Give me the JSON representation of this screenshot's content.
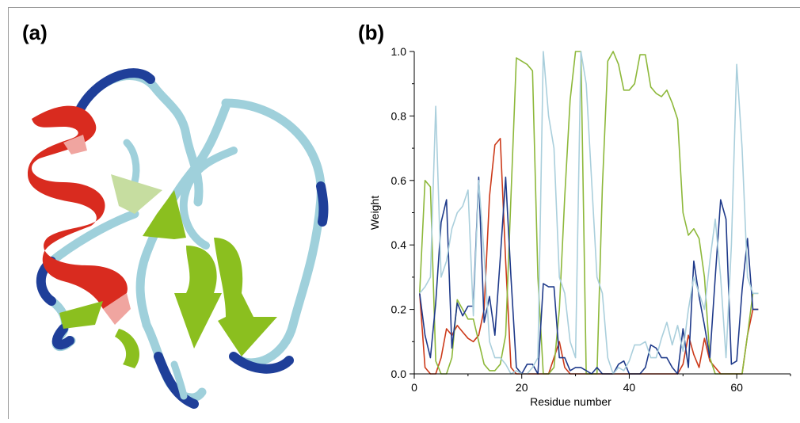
{
  "panels": {
    "a_label": "(a)",
    "b_label": "(b)"
  },
  "colors": {
    "helix": "#d92b1f",
    "strand": "#8bbf1f",
    "coil_light": "#9fd0db",
    "coil_dark": "#1f3f99",
    "series_red": "#cc3a1a",
    "series_green": "#8db83a",
    "series_navy": "#1f3a8a",
    "series_lightblue": "#aacfdc"
  },
  "chart_data": {
    "type": "line",
    "xlabel": "Residue number",
    "ylabel": "Weight",
    "xlim": [
      0,
      70
    ],
    "ylim": [
      0,
      1.0
    ],
    "xticks": [
      "0",
      "20",
      "40",
      "60"
    ],
    "yticks": [
      "0.0",
      "0.2",
      "0.4",
      "0.6",
      "0.8",
      "1.0"
    ],
    "grid": false,
    "legend": "none",
    "series": [
      {
        "color": "#cc3a1a",
        "x": [
          1,
          2,
          3,
          4,
          5,
          6,
          7,
          8,
          9,
          10,
          11,
          12,
          13,
          14,
          15,
          16,
          17,
          18,
          19,
          20,
          21,
          22,
          23,
          24,
          25,
          26,
          27,
          28,
          29,
          30,
          31,
          32,
          33,
          34,
          35,
          36,
          37,
          38,
          39,
          40,
          41,
          42,
          43,
          44,
          45,
          46,
          47,
          48,
          49,
          50,
          51,
          52,
          53,
          54,
          55,
          56,
          57,
          58,
          59,
          60,
          61,
          62,
          63,
          64
        ],
        "values": [
          0.25,
          0.02,
          0.0,
          0.0,
          0.05,
          0.14,
          0.12,
          0.15,
          0.13,
          0.11,
          0.1,
          0.12,
          0.2,
          0.55,
          0.71,
          0.73,
          0.35,
          0.02,
          0.0,
          0.0,
          0.0,
          0.0,
          0.0,
          0.0,
          0.0,
          0.05,
          0.1,
          0.02,
          0.0,
          0.0,
          0.0,
          0.0,
          0.0,
          0.0,
          0.0,
          0.0,
          0.0,
          0.0,
          0.0,
          0.0,
          0.0,
          0.0,
          0.0,
          0.0,
          0.0,
          0.0,
          0.0,
          0.0,
          0.0,
          0.03,
          0.12,
          0.06,
          0.02,
          0.11,
          0.04,
          0.02,
          0.0,
          0.0,
          0.0,
          0.0,
          0.0,
          0.12,
          0.2,
          0.2
        ]
      },
      {
        "color": "#8db83a",
        "x": [
          1,
          2,
          3,
          4,
          5,
          6,
          7,
          8,
          9,
          10,
          11,
          12,
          13,
          14,
          15,
          16,
          17,
          18,
          19,
          20,
          21,
          22,
          23,
          24,
          25,
          26,
          27,
          28,
          29,
          30,
          31,
          32,
          33,
          34,
          35,
          36,
          37,
          38,
          39,
          40,
          41,
          42,
          43,
          44,
          45,
          46,
          47,
          48,
          49,
          50,
          51,
          52,
          53,
          54,
          55,
          56,
          57,
          58,
          59,
          60,
          61,
          62,
          63,
          64
        ],
        "values": [
          0.25,
          0.6,
          0.58,
          0.04,
          0.0,
          0.0,
          0.05,
          0.23,
          0.2,
          0.17,
          0.17,
          0.1,
          0.03,
          0.01,
          0.01,
          0.03,
          0.12,
          0.55,
          0.98,
          0.97,
          0.96,
          0.94,
          0.3,
          0.0,
          0.0,
          0.02,
          0.2,
          0.55,
          0.85,
          1.0,
          1.0,
          0.0,
          0.0,
          0.0,
          0.58,
          0.97,
          1.0,
          0.96,
          0.88,
          0.88,
          0.9,
          0.99,
          0.99,
          0.89,
          0.87,
          0.86,
          0.88,
          0.84,
          0.79,
          0.5,
          0.43,
          0.45,
          0.42,
          0.3,
          0.05,
          0.0,
          0.0,
          0.0,
          0.0,
          0.0,
          0.0,
          0.12,
          0.25,
          0.25
        ]
      },
      {
        "color": "#1f3a8a",
        "x": [
          1,
          2,
          3,
          4,
          5,
          6,
          7,
          8,
          9,
          10,
          11,
          12,
          13,
          14,
          15,
          16,
          17,
          18,
          19,
          20,
          21,
          22,
          23,
          24,
          25,
          26,
          27,
          28,
          29,
          30,
          31,
          32,
          33,
          34,
          35,
          36,
          37,
          38,
          39,
          40,
          41,
          42,
          43,
          44,
          45,
          46,
          47,
          48,
          49,
          50,
          51,
          52,
          53,
          54,
          55,
          56,
          57,
          58,
          59,
          60,
          61,
          62,
          63,
          64
        ],
        "values": [
          0.25,
          0.12,
          0.05,
          0.22,
          0.47,
          0.54,
          0.08,
          0.22,
          0.18,
          0.21,
          0.21,
          0.61,
          0.16,
          0.24,
          0.12,
          0.36,
          0.61,
          0.3,
          0.02,
          0.0,
          0.03,
          0.03,
          0.0,
          0.28,
          0.27,
          0.27,
          0.05,
          0.05,
          0.01,
          0.02,
          0.02,
          0.01,
          0.0,
          0.02,
          0.0,
          0.0,
          0.0,
          0.03,
          0.04,
          0.0,
          0.0,
          0.0,
          0.02,
          0.09,
          0.08,
          0.05,
          0.05,
          0.02,
          0.0,
          0.14,
          0.02,
          0.35,
          0.24,
          0.15,
          0.05,
          0.3,
          0.54,
          0.48,
          0.03,
          0.04,
          0.26,
          0.42,
          0.2,
          0.2
        ]
      },
      {
        "color": "#aacfdc",
        "x": [
          1,
          2,
          3,
          4,
          5,
          6,
          7,
          8,
          9,
          10,
          11,
          12,
          13,
          14,
          15,
          16,
          17,
          18,
          19,
          20,
          21,
          22,
          23,
          24,
          25,
          26,
          27,
          28,
          29,
          30,
          31,
          32,
          33,
          34,
          35,
          36,
          37,
          38,
          39,
          40,
          41,
          42,
          43,
          44,
          45,
          46,
          47,
          48,
          49,
          50,
          51,
          52,
          53,
          54,
          55,
          56,
          57,
          58,
          59,
          60,
          61,
          62,
          63,
          64
        ],
        "values": [
          0.25,
          0.27,
          0.3,
          0.83,
          0.3,
          0.35,
          0.45,
          0.5,
          0.52,
          0.57,
          0.18,
          0.6,
          0.37,
          0.1,
          0.05,
          0.05,
          0.03,
          0.0,
          0.01,
          0.0,
          0.0,
          0.02,
          0.05,
          1.0,
          0.8,
          0.7,
          0.3,
          0.25,
          0.1,
          0.05,
          1.0,
          0.9,
          0.6,
          0.3,
          0.25,
          0.05,
          0.0,
          0.02,
          0.01,
          0.04,
          0.09,
          0.09,
          0.1,
          0.05,
          0.05,
          0.11,
          0.16,
          0.09,
          0.15,
          0.07,
          0.2,
          0.3,
          0.25,
          0.2,
          0.35,
          0.48,
          0.3,
          0.05,
          0.4,
          0.96,
          0.7,
          0.3,
          0.25,
          0.25
        ]
      }
    ]
  }
}
